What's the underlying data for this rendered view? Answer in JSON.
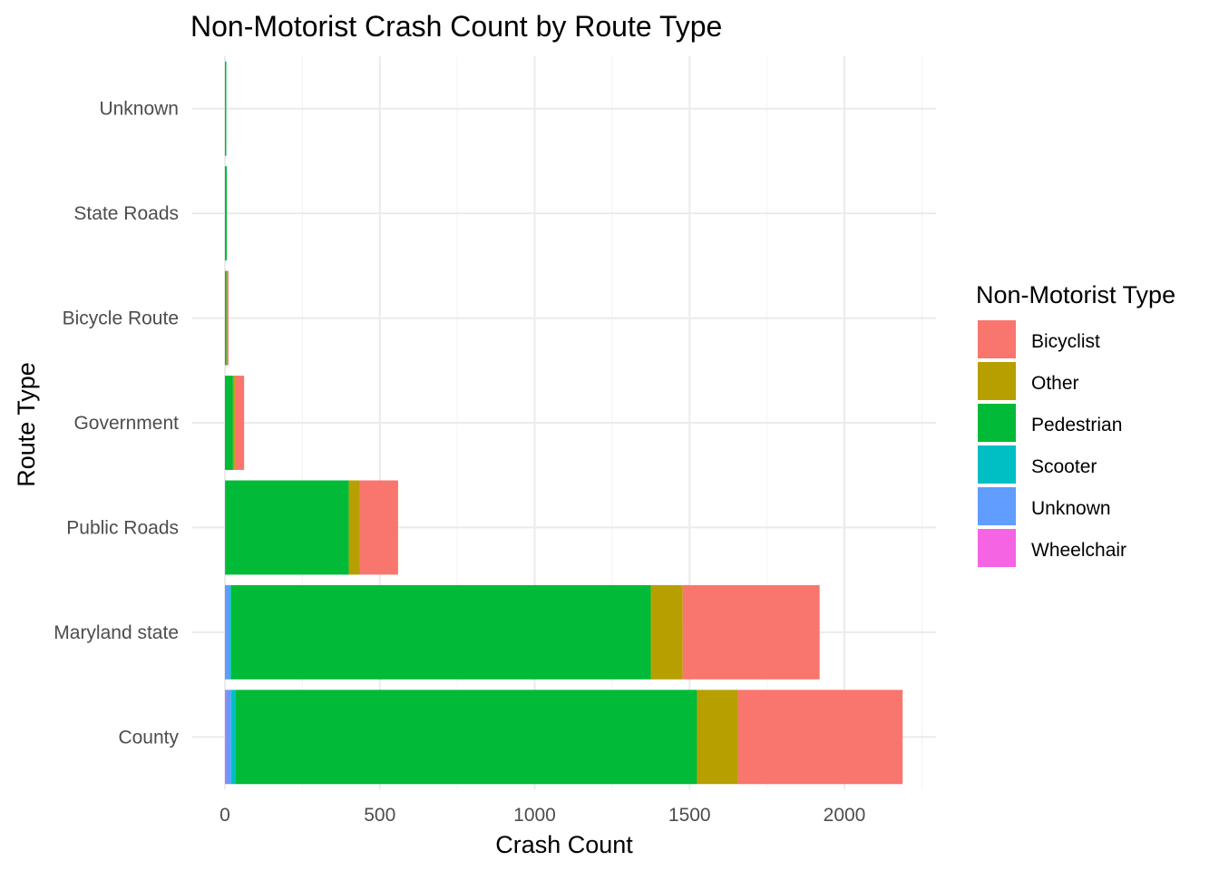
{
  "chart_data": {
    "type": "bar",
    "orientation": "horizontal",
    "stacked": true,
    "title": "Non-Motorist Crash Count by Route Type",
    "xlabel": "Crash Count",
    "ylabel": "Route Type",
    "xlim": [
      0,
      2300
    ],
    "x_ticks": [
      0,
      500,
      1000,
      1500,
      2000
    ],
    "grid": true,
    "legend_title": "Non-Motorist Type",
    "legend_position": "right",
    "categories": [
      "County",
      "Maryland state",
      "Public Roads",
      "Government",
      "Bicycle Route",
      "State Roads",
      "Unknown"
    ],
    "series": [
      {
        "name": "Wheelchair",
        "color": "#F564E3",
        "values": [
          4,
          0,
          0,
          0,
          0,
          0,
          0
        ]
      },
      {
        "name": "Unknown",
        "color": "#619CFF",
        "values": [
          16,
          15,
          1,
          0,
          0,
          0,
          0
        ]
      },
      {
        "name": "Scooter",
        "color": "#00BFC4",
        "values": [
          15,
          5,
          1,
          0,
          0,
          0,
          0
        ]
      },
      {
        "name": "Pedestrian",
        "color": "#00BA38",
        "values": [
          1489,
          1355,
          398,
          26,
          5,
          6,
          3
        ]
      },
      {
        "name": "Other",
        "color": "#B79F00",
        "values": [
          133,
          103,
          35,
          6,
          2,
          0,
          0
        ]
      },
      {
        "name": "Bicyclist",
        "color": "#F8766D",
        "values": [
          531,
          442,
          124,
          30,
          4,
          0,
          0
        ]
      }
    ],
    "legend_order": [
      "Bicyclist",
      "Other",
      "Pedestrian",
      "Scooter",
      "Unknown",
      "Wheelchair"
    ]
  }
}
